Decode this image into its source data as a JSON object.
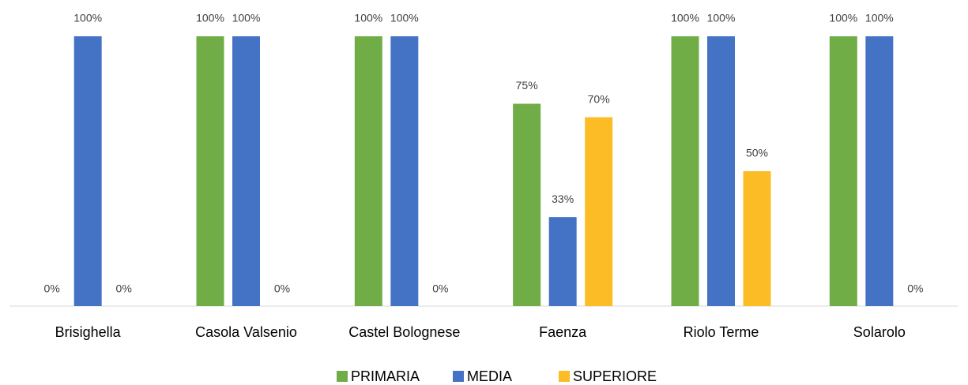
{
  "chart_data": {
    "type": "bar",
    "categories": [
      "Brisighella",
      "Casola Valsenio",
      "Castel Bolognese",
      "Faenza",
      "Riolo Terme",
      "Solarolo"
    ],
    "series": [
      {
        "name": "PRIMARIA",
        "color": "#70ad47",
        "values": [
          0,
          100,
          100,
          75,
          100,
          100
        ],
        "value_labels": [
          "0%",
          "100%",
          "100%",
          "75%",
          "100%",
          "100%"
        ]
      },
      {
        "name": "MEDIA",
        "color": "#4472c4",
        "values": [
          100,
          100,
          100,
          33,
          100,
          100
        ],
        "value_labels": [
          "100%",
          "100%",
          "100%",
          "33%",
          "100%",
          "100%"
        ]
      },
      {
        "name": "SUPERIORE",
        "color": "#fbbc25",
        "values": [
          0,
          0,
          0,
          70,
          50,
          0
        ],
        "value_labels": [
          "0%",
          "0%",
          "0%",
          "70%",
          "50%",
          "0%"
        ]
      }
    ],
    "legend": "bottom"
  }
}
